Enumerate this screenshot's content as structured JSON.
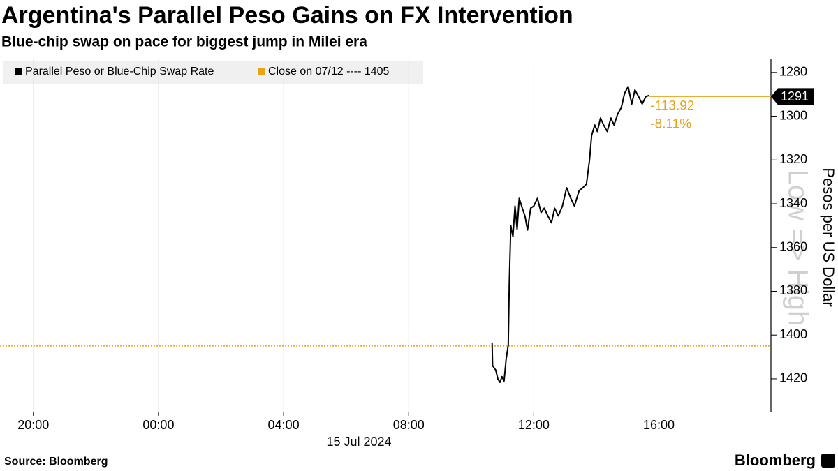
{
  "chart_data": {
    "type": "line",
    "title": "Argentina's Parallel Peso Gains on FX Intervention",
    "subtitle": "Blue-chip swap on pace for biggest jump in Milei era",
    "y_label": "Pesos per US Dollar",
    "watermark": "Low => High",
    "date_label": "15 Jul 2024",
    "source": "Source: Bloomberg",
    "brand": "Bloomberg",
    "x": [
      "2024-07-15 10:40",
      "2024-07-15 10:41",
      "2024-07-15 10:47",
      "2024-07-15 10:51",
      "2024-07-15 10:55",
      "2024-07-15 10:59",
      "2024-07-15 11:03",
      "2024-07-15 11:07",
      "2024-07-15 11:11",
      "2024-07-15 11:13",
      "2024-07-15 11:16",
      "2024-07-15 11:20",
      "2024-07-15 11:24",
      "2024-07-15 11:28",
      "2024-07-15 11:32",
      "2024-07-15 11:38",
      "2024-07-15 11:43",
      "2024-07-15 11:48",
      "2024-07-15 11:54",
      "2024-07-15 12:00",
      "2024-07-15 12:07",
      "2024-07-15 12:14",
      "2024-07-15 12:20",
      "2024-07-15 12:27",
      "2024-07-15 12:34",
      "2024-07-15 12:40",
      "2024-07-15 12:47",
      "2024-07-15 12:55",
      "2024-07-15 13:03",
      "2024-07-15 13:11",
      "2024-07-15 13:18",
      "2024-07-15 13:27",
      "2024-07-15 13:34",
      "2024-07-15 13:41",
      "2024-07-15 13:47",
      "2024-07-15 13:51",
      "2024-07-15 13:57",
      "2024-07-15 14:02",
      "2024-07-15 14:08",
      "2024-07-15 14:14",
      "2024-07-15 14:21",
      "2024-07-15 14:28",
      "2024-07-15 14:34",
      "2024-07-15 14:41",
      "2024-07-15 14:48",
      "2024-07-15 14:54",
      "2024-07-15 15:01",
      "2024-07-15 15:08",
      "2024-07-15 15:14",
      "2024-07-15 15:21",
      "2024-07-15 15:28",
      "2024-07-15 15:35",
      "2024-07-15 15:41"
    ],
    "series": [
      {
        "name": "Parallel Peso or Blue-Chip Swap Rate",
        "color": "#000000",
        "values": [
          1403.7,
          1414,
          1416,
          1420,
          1421.6,
          1419,
          1421,
          1411,
          1404.6,
          1376,
          1350,
          1355,
          1341,
          1351.6,
          1337.5,
          1342,
          1345.5,
          1352,
          1342,
          1341,
          1337.5,
          1344,
          1342,
          1345.5,
          1348.7,
          1342,
          1345.5,
          1341,
          1332.7,
          1337.5,
          1341,
          1334,
          1332.7,
          1331,
          1320,
          1308.8,
          1304,
          1307,
          1300.8,
          1304,
          1307,
          1300.8,
          1304,
          1299,
          1296,
          1289.6,
          1286.4,
          1294.4,
          1288,
          1291,
          1294.4,
          1291,
          1290.5
        ]
      }
    ],
    "reference_line": {
      "label": "Close on 07/12 ---- 1405",
      "value": 1405,
      "color": "#e8a317"
    },
    "last_value": 1291,
    "annotations": [
      "-113.92",
      "-8.11%"
    ],
    "xlim": [
      "2024-07-14 19:00",
      "2024-07-15 19:35"
    ],
    "xticks": [
      {
        "value": "2024-07-14 20:00",
        "label": "20:00"
      },
      {
        "value": "2024-07-15 00:00",
        "label": "00:00"
      },
      {
        "value": "2024-07-15 04:00",
        "label": "04:00"
      },
      {
        "value": "2024-07-15 08:00",
        "label": "08:00"
      },
      {
        "value": "2024-07-15 12:00",
        "label": "12:00"
      },
      {
        "value": "2024-07-15 16:00",
        "label": "16:00"
      }
    ],
    "ylim": [
      1435,
      1274
    ],
    "yticks": [
      1280,
      1300,
      1320,
      1340,
      1360,
      1380,
      1400,
      1420
    ],
    "grid": true
  }
}
